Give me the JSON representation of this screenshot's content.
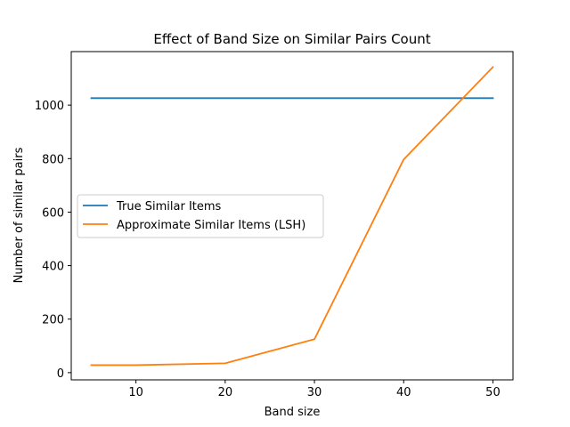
{
  "chart_data": {
    "type": "line",
    "title": "Effect of Band Size on Similar Pairs Count",
    "xlabel": "Band size",
    "ylabel": "Number of similar pairs",
    "xlim": [
      2.75,
      52.25
    ],
    "ylim": [
      -27,
      1200
    ],
    "xticks": [
      10,
      20,
      30,
      40,
      50
    ],
    "yticks": [
      0,
      200,
      400,
      600,
      800,
      1000
    ],
    "grid": false,
    "legend_position": "center-left",
    "series": [
      {
        "name": "True Similar Items",
        "color": "#1f77b4",
        "x": [
          5,
          10,
          20,
          30,
          40,
          50
        ],
        "values": [
          1026,
          1026,
          1026,
          1026,
          1026,
          1026
        ]
      },
      {
        "name": "Approximate Similar Items (LSH)",
        "color": "#ff7f0e",
        "x": [
          5,
          10,
          20,
          30,
          40,
          50
        ],
        "values": [
          28,
          28,
          35,
          125,
          797,
          1142
        ]
      }
    ]
  }
}
